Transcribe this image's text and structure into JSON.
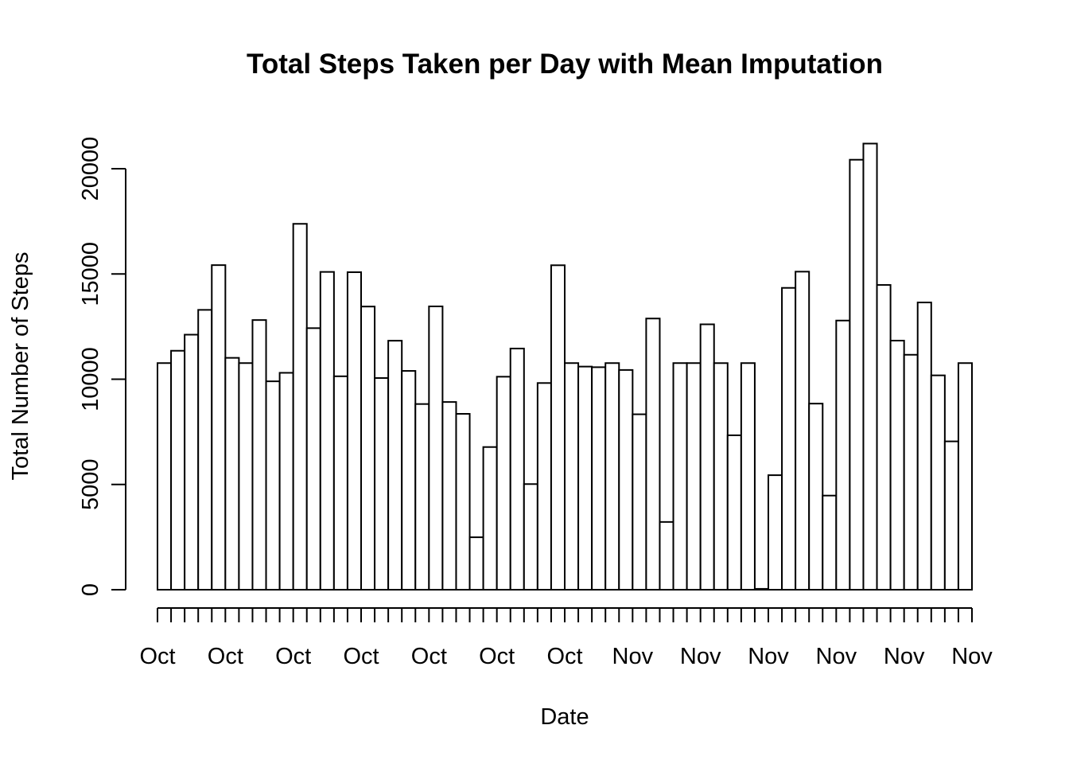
{
  "chart_data": {
    "type": "bar",
    "title": "Total Steps Taken per Day with Mean Imputation",
    "xlabel": "Date",
    "ylabel": "Total Number of Steps",
    "ylim": [
      0,
      20000
    ],
    "y_ticks": [
      "0",
      "5000",
      "10000",
      "15000",
      "20000"
    ],
    "x_tick_labels": [
      "Oct",
      "Oct",
      "Oct",
      "Oct",
      "Oct",
      "Oct",
      "Oct",
      "Nov",
      "Nov",
      "Nov",
      "Nov",
      "Nov",
      "Nov"
    ],
    "grid": false,
    "values": [
      10766,
      11352,
      12116,
      13294,
      15420,
      11015,
      10766,
      12811,
      9900,
      10304,
      17382,
      12426,
      15098,
      10139,
      15084,
      13452,
      10056,
      11829,
      10395,
      8821,
      13460,
      8918,
      8355,
      2492,
      6778,
      10119,
      11458,
      5018,
      9819,
      15414,
      10766,
      10600,
      10571,
      10766,
      10439,
      8334,
      12883,
      3219,
      10766,
      10766,
      12608,
      10765,
      7336,
      10766,
      41,
      5441,
      14339,
      15110,
      8841,
      4472,
      12787,
      20427,
      21194,
      14478,
      11834,
      11162,
      13646,
      10183,
      7047,
      10766
    ]
  }
}
